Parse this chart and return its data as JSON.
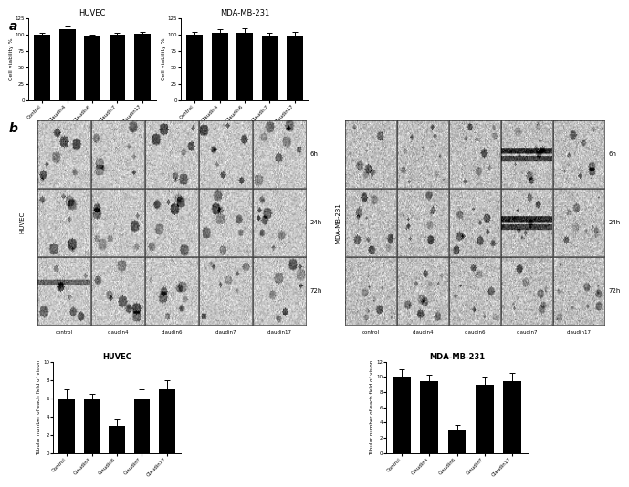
{
  "huvec_viability": {
    "categories": [
      "Control",
      "Claudin4",
      "Claudin6",
      "Claudin7",
      "Claudin17"
    ],
    "values": [
      100,
      108,
      97,
      100,
      101
    ],
    "errors": [
      3,
      4,
      3,
      3,
      3
    ],
    "title": "HUVEC",
    "ylabel": "Cell viability %",
    "ylim": [
      0,
      125
    ],
    "yticks": [
      0,
      25,
      50,
      75,
      100,
      125
    ]
  },
  "mda_viability": {
    "categories": [
      "Control",
      "Claudin4",
      "Claudin6",
      "Claudin7",
      "Claudin17"
    ],
    "values": [
      100,
      103,
      103,
      98,
      98
    ],
    "errors": [
      4,
      5,
      6,
      5,
      6
    ],
    "title": "MDA-MB-231",
    "ylabel": "Cell viability %",
    "ylim": [
      0,
      125
    ],
    "yticks": [
      0,
      25,
      50,
      75,
      100,
      125
    ]
  },
  "huvec_tubule": {
    "categories": [
      "Control",
      "Claudin4",
      "Claudin6",
      "Claudin7",
      "Claudin17"
    ],
    "values": [
      6.0,
      6.0,
      3.0,
      6.0,
      7.0
    ],
    "errors": [
      1.0,
      0.5,
      0.8,
      1.0,
      1.0
    ],
    "title": "HUVEC",
    "ylabel": "Tubular number of each field of vision",
    "ylim": [
      0,
      10
    ],
    "yticks": [
      0,
      2,
      4,
      6,
      8,
      10
    ]
  },
  "mda_tubule": {
    "categories": [
      "Control",
      "Claudin4",
      "Claudin6",
      "Claudin7",
      "Claudin17"
    ],
    "values": [
      10.0,
      9.5,
      3.0,
      9.0,
      9.5
    ],
    "errors": [
      1.0,
      0.8,
      0.7,
      1.0,
      1.0
    ],
    "title": "MDA-MB-231",
    "ylabel": "Tubular number of each field of vision",
    "ylim": [
      0,
      12
    ],
    "yticks": [
      0,
      2,
      4,
      6,
      8,
      10,
      12
    ]
  },
  "bar_color": "#000000",
  "background_color": "#ffffff",
  "panel_a_label": "a",
  "panel_b_label": "b",
  "huvec_label": "HUVEC",
  "mda_label": "MDA-MB-231",
  "time_labels": [
    "6h",
    "24h",
    "72h"
  ],
  "huvec_col_labels": [
    "control",
    "claudin4",
    "claudin6",
    "claudin7",
    "claudin17"
  ],
  "mda_col_labels": [
    "control",
    "claudin4",
    "claudin6",
    "claudin7",
    "claudin17"
  ]
}
